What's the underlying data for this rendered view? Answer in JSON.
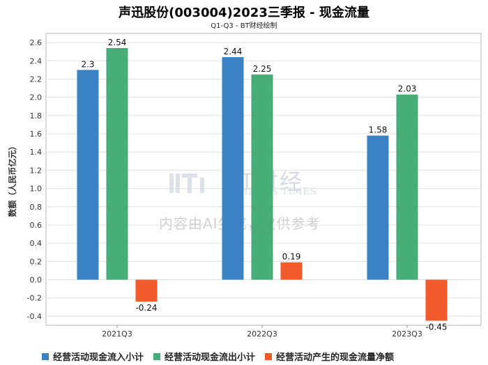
{
  "title": "声迅股份(003004)2023三季报 - 现金流量",
  "subtitle": "Q1-Q3 - BT财经绘制",
  "watermark": {
    "brand": "BT财经",
    "brand_sub": "BUSINESS TIMES",
    "note": "内容由AI生成，仅供参考"
  },
  "colors": {
    "inflow": "#3a82c4",
    "outflow": "#46ad76",
    "net": "#f15a2b"
  },
  "chart_data": {
    "type": "bar",
    "categories": [
      "2021Q3",
      "2022Q3",
      "2023Q3"
    ],
    "series": [
      {
        "name": "经营活动现金流入小计",
        "values": [
          2.3,
          2.44,
          1.58
        ]
      },
      {
        "name": "经营活动现金流出小计",
        "values": [
          2.54,
          2.25,
          2.03
        ]
      },
      {
        "name": "经营活动产生的现金流量净额",
        "values": [
          -0.24,
          0.19,
          -0.45
        ]
      }
    ],
    "ylabel": "数额（人民币亿元）",
    "xlabel": "",
    "ylim": [
      -0.5,
      2.7
    ],
    "yticks": [
      -0.4,
      -0.2,
      0.0,
      0.2,
      0.4,
      0.6,
      0.8,
      1.0,
      1.2,
      1.4,
      1.6,
      1.8,
      2.0,
      2.2,
      2.4,
      2.6
    ],
    "grid": true,
    "legend": "bottom"
  }
}
